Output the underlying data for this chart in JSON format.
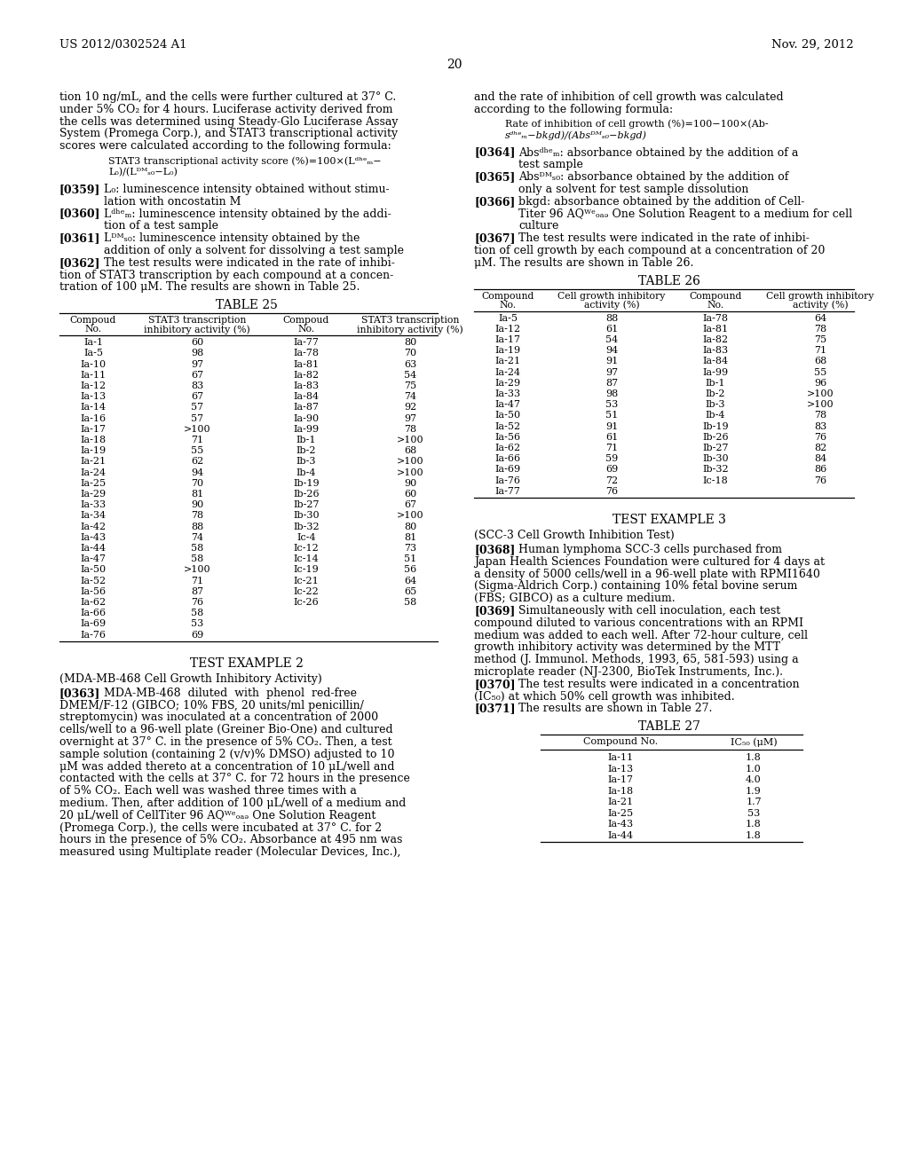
{
  "header_left": "US 2012/0302524 A1",
  "header_right": "Nov. 29, 2012",
  "page_number": "20",
  "bg_color": "#ffffff",
  "table25_left": [
    [
      "Ia-1",
      "60"
    ],
    [
      "Ia-5",
      "98"
    ],
    [
      "Ia-10",
      "97"
    ],
    [
      "Ia-11",
      "67"
    ],
    [
      "Ia-12",
      "83"
    ],
    [
      "Ia-13",
      "67"
    ],
    [
      "Ia-14",
      "57"
    ],
    [
      "Ia-16",
      "57"
    ],
    [
      "Ia-17",
      ">100"
    ],
    [
      "Ia-18",
      "71"
    ],
    [
      "Ia-19",
      "55"
    ],
    [
      "Ia-21",
      "62"
    ],
    [
      "Ia-24",
      "94"
    ],
    [
      "Ia-25",
      "70"
    ],
    [
      "Ia-29",
      "81"
    ],
    [
      "Ia-33",
      "90"
    ],
    [
      "Ia-34",
      "78"
    ],
    [
      "Ia-42",
      "88"
    ],
    [
      "Ia-43",
      "74"
    ],
    [
      "Ia-44",
      "58"
    ],
    [
      "Ia-47",
      "58"
    ],
    [
      "Ia-50",
      ">100"
    ],
    [
      "Ia-52",
      "71"
    ],
    [
      "Ia-56",
      "87"
    ],
    [
      "Ia-62",
      "76"
    ],
    [
      "Ia-66",
      "58"
    ],
    [
      "Ia-69",
      "53"
    ],
    [
      "Ia-76",
      "69"
    ]
  ],
  "table25_right": [
    [
      "Ia-77",
      "80"
    ],
    [
      "Ia-78",
      "70"
    ],
    [
      "Ia-81",
      "63"
    ],
    [
      "Ia-82",
      "54"
    ],
    [
      "Ia-83",
      "75"
    ],
    [
      "Ia-84",
      "74"
    ],
    [
      "Ia-87",
      "92"
    ],
    [
      "Ia-90",
      "97"
    ],
    [
      "Ia-99",
      "78"
    ],
    [
      "Ib-1",
      ">100"
    ],
    [
      "Ib-2",
      "68"
    ],
    [
      "Ib-3",
      ">100"
    ],
    [
      "Ib-4",
      ">100"
    ],
    [
      "Ib-19",
      "90"
    ],
    [
      "Ib-26",
      "60"
    ],
    [
      "Ib-27",
      "67"
    ],
    [
      "Ib-30",
      ">100"
    ],
    [
      "Ib-32",
      "80"
    ],
    [
      "Ic-4",
      "81"
    ],
    [
      "Ic-12",
      "73"
    ],
    [
      "Ic-14",
      "51"
    ],
    [
      "Ic-19",
      "56"
    ],
    [
      "Ic-21",
      "64"
    ],
    [
      "Ic-22",
      "65"
    ],
    [
      "Ic-26",
      "58"
    ],
    [
      "",
      ""
    ],
    [
      "",
      ""
    ],
    [
      "",
      ""
    ]
  ],
  "table26_left": [
    [
      "Ia-5",
      "88"
    ],
    [
      "Ia-12",
      "61"
    ],
    [
      "Ia-17",
      "54"
    ],
    [
      "Ia-19",
      "94"
    ],
    [
      "Ia-21",
      "91"
    ],
    [
      "Ia-24",
      "97"
    ],
    [
      "Ia-29",
      "87"
    ],
    [
      "Ia-33",
      "98"
    ],
    [
      "Ia-47",
      "53"
    ],
    [
      "Ia-50",
      "51"
    ],
    [
      "Ia-52",
      "91"
    ],
    [
      "Ia-56",
      "61"
    ],
    [
      "Ia-62",
      "71"
    ],
    [
      "Ia-66",
      "59"
    ],
    [
      "Ia-69",
      "69"
    ],
    [
      "Ia-76",
      "72"
    ],
    [
      "Ia-77",
      "76"
    ]
  ],
  "table26_right": [
    [
      "Ia-78",
      "64"
    ],
    [
      "Ia-81",
      "78"
    ],
    [
      "Ia-82",
      "75"
    ],
    [
      "Ia-83",
      "71"
    ],
    [
      "Ia-84",
      "68"
    ],
    [
      "Ia-99",
      "55"
    ],
    [
      "Ib-1",
      "96"
    ],
    [
      "Ib-2",
      ">100"
    ],
    [
      "Ib-3",
      ">100"
    ],
    [
      "Ib-4",
      "78"
    ],
    [
      "Ib-19",
      "83"
    ],
    [
      "Ib-26",
      "76"
    ],
    [
      "Ib-27",
      "82"
    ],
    [
      "Ib-30",
      "84"
    ],
    [
      "Ib-32",
      "86"
    ],
    [
      "Ic-18",
      "76"
    ],
    [
      "",
      ""
    ]
  ],
  "table27_data": [
    [
      "Ia-11",
      "1.8"
    ],
    [
      "Ia-13",
      "1.0"
    ],
    [
      "Ia-17",
      "4.0"
    ],
    [
      "Ia-18",
      "1.9"
    ],
    [
      "Ia-21",
      "1.7"
    ],
    [
      "Ia-25",
      "53"
    ],
    [
      "Ia-43",
      "1.8"
    ],
    [
      "Ia-44",
      "1.8"
    ]
  ]
}
